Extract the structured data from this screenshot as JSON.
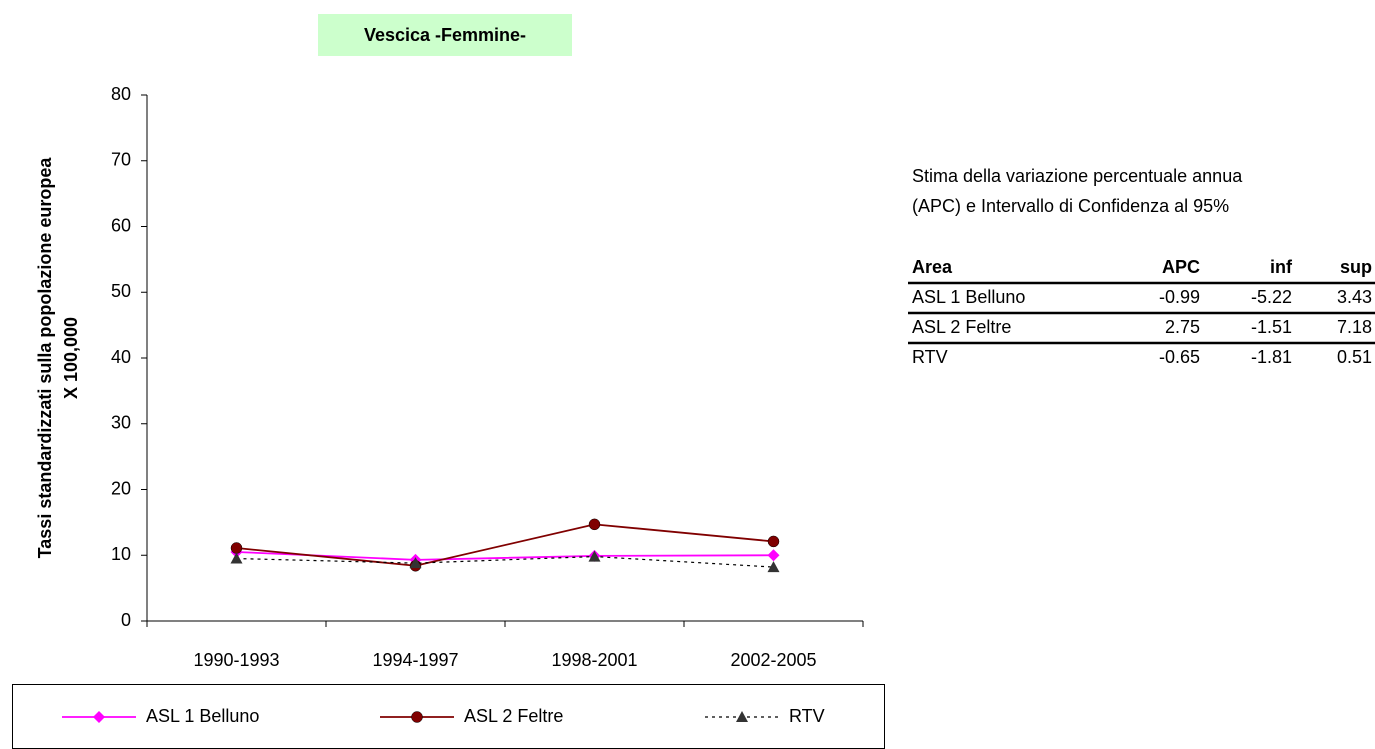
{
  "chart_data": {
    "type": "line",
    "title": "Vescica -Femmine-",
    "ylabel": [
      "Tassi standardizzati sulla popolazione europea",
      "X 100,000"
    ],
    "categories": [
      "1990-1993",
      "1994-1997",
      "1998-2001",
      "2002-2005"
    ],
    "series": [
      {
        "name": "ASL 1 Belluno",
        "color": "#ff00ff",
        "marker": "diamond",
        "dash": false,
        "values": [
          10.5,
          9.3,
          9.9,
          10.0
        ]
      },
      {
        "name": "ASL 2 Feltre",
        "color": "#800000",
        "marker": "circle",
        "dash": false,
        "values": [
          11.1,
          8.4,
          14.7,
          12.1
        ]
      },
      {
        "name": "RTV",
        "color": "#000000",
        "marker": "triangle",
        "dash": true,
        "values": [
          9.5,
          8.8,
          9.8,
          8.2
        ]
      }
    ],
    "ylim": [
      0,
      80
    ],
    "yticks": [
      0,
      10,
      20,
      30,
      40,
      50,
      60,
      70,
      80
    ],
    "grid": false,
    "legend": "bottom"
  },
  "table": {
    "caption": [
      "Stima della variazione percentuale annua",
      "(APC) e Intervallo di Confidenza al 95%"
    ],
    "header": [
      "Area",
      "APC",
      "inf",
      "sup"
    ],
    "rows": [
      [
        "ASL 1 Belluno",
        -0.99,
        -5.22,
        3.43
      ],
      [
        "ASL 2 Feltre",
        2.75,
        -1.51,
        7.18
      ],
      [
        "RTV",
        -0.65,
        -1.81,
        0.51
      ]
    ]
  }
}
